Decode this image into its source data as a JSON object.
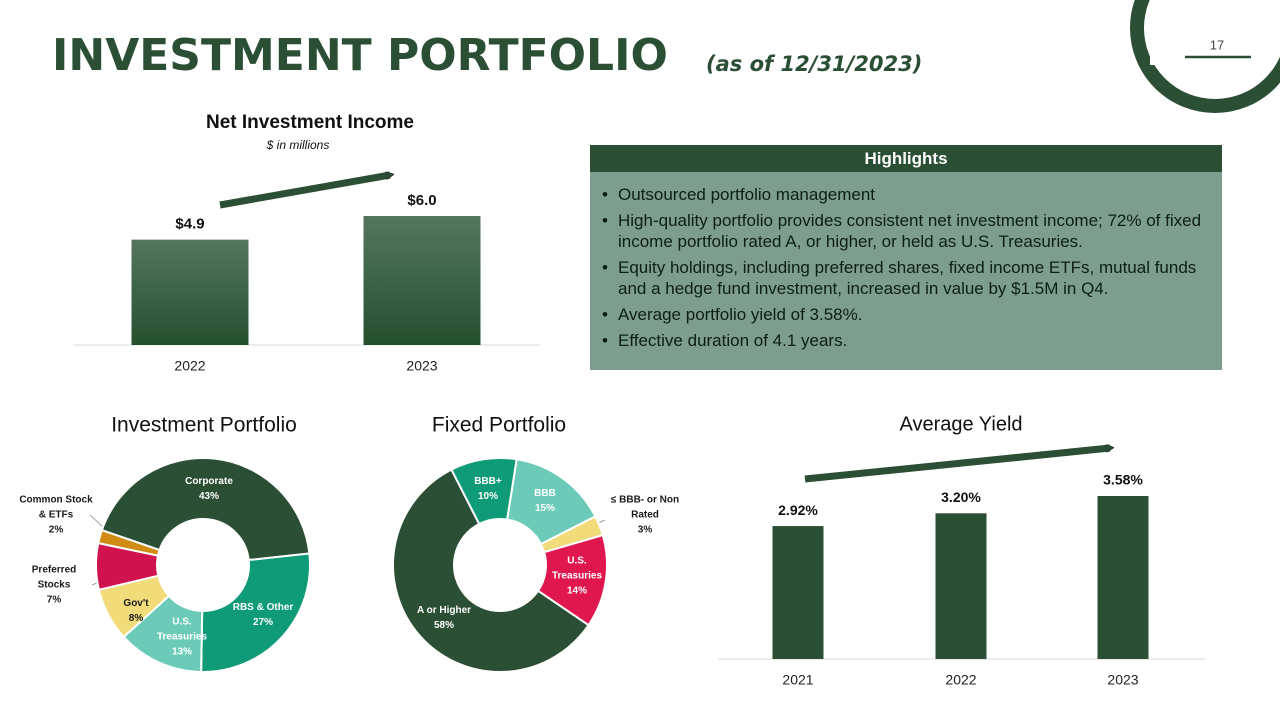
{
  "header": {
    "title": "INVESTMENT PORTFOLIO",
    "subtitle": "(as of 12/31/2023)",
    "page_number": 17
  },
  "highlights": {
    "title": "Highlights",
    "items": [
      "Outsourced portfolio management",
      "High-quality portfolio provides consistent net investment income; 72% of fixed income portfolio rated A, or higher, or held as U.S. Treasuries.",
      "Equity holdings, including preferred shares, fixed income ETFs, mutual funds and a hedge fund investment, increased in value by $1.5M in Q4.",
      "Average portfolio yield of 3.58%.",
      "Effective duration of 4.1 years."
    ]
  },
  "chart_data": [
    {
      "type": "bar",
      "title": "Net Investment Income",
      "subtitle": "$ in millions",
      "categories": [
        "2022",
        "2023"
      ],
      "values": [
        4.9,
        6.0
      ],
      "value_labels": [
        "$4.9",
        "$6.0"
      ],
      "color": "#24502f"
    },
    {
      "type": "pie",
      "title": "Investment Portfolio",
      "categories": [
        "Corporate",
        "RBS & Other",
        "U.S. Treasuries",
        "Gov't",
        "Preferred Stocks",
        "Common Stock & ETFs"
      ],
      "values": [
        43,
        27,
        13,
        8,
        7,
        2
      ],
      "value_labels": [
        "43%",
        "27%",
        "13%",
        "8%",
        "7%",
        "2%"
      ],
      "colors": [
        "#2b4f35",
        "#0f9a78",
        "#6ccbb8",
        "#f2dc7a",
        "#d0134f",
        "#d08c12"
      ]
    },
    {
      "type": "pie",
      "title": "Fixed Portfolio",
      "categories": [
        "BBB+",
        "BBB",
        "≤ BBB- or Non Rated",
        "U.S. Treasuries",
        "A or Higher"
      ],
      "values": [
        10,
        15,
        3,
        14,
        58
      ],
      "value_labels": [
        "10%",
        "15%",
        "3%",
        "14%",
        "58%"
      ],
      "colors": [
        "#0f9a78",
        "#6ccbb8",
        "#f2dc7a",
        "#e0174f",
        "#2b4f35"
      ]
    },
    {
      "type": "bar",
      "title": "Average Yield",
      "categories": [
        "2021",
        "2022",
        "2023"
      ],
      "values": [
        2.92,
        3.2,
        3.58
      ],
      "value_labels": [
        "2.92%",
        "3.20%",
        "3.58%"
      ],
      "color": "#2b4f35"
    }
  ]
}
